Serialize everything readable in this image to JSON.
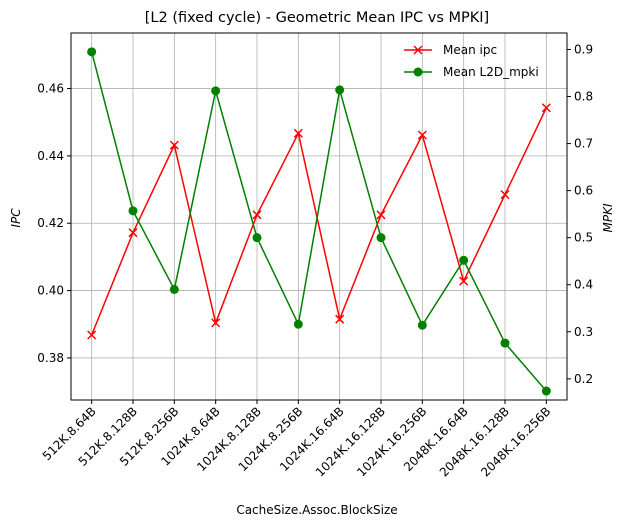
{
  "chart_data": {
    "type": "line",
    "title": "[L2 (fixed cycle) - Geometric Mean IPC vs MPKI]",
    "xlabel": "CacheSize.Assoc.BlockSize",
    "ylabel": "IPC",
    "y2label": "MPKI",
    "categories": [
      "512K.8.64B",
      "512K.8.128B",
      "512K.8.256B",
      "1024K.8.64B",
      "1024K.8.128B",
      "1024K.8.256B",
      "1024K.16.64B",
      "1024K.16.128B",
      "1024K.16.256B",
      "2048K.16.64B",
      "2048K.16.128B",
      "2048K.16.256B"
    ],
    "series": [
      {
        "name": "Mean ipc",
        "axis": "left",
        "color": "#ff0000",
        "marker": "x",
        "values": [
          0.3868,
          0.4172,
          0.4432,
          0.3904,
          0.4225,
          0.4467,
          0.3915,
          0.4225,
          0.4462,
          0.4028,
          0.4285,
          0.4543
        ]
      },
      {
        "name": "Mean L2D_mpki",
        "axis": "right",
        "color": "#008000",
        "marker": "circle",
        "values": [
          0.895,
          0.557,
          0.39,
          0.812,
          0.5,
          0.316,
          0.814,
          0.5,
          0.314,
          0.452,
          0.276,
          0.174
        ]
      }
    ],
    "ylim": [
      0.3675,
      0.4765
    ],
    "y2lim": [
      0.155,
      0.935
    ],
    "yticks": [
      0.38,
      0.4,
      0.42,
      0.44,
      0.46
    ],
    "y2ticks": [
      0.2,
      0.3,
      0.4,
      0.5,
      0.6,
      0.7,
      0.8,
      0.9
    ],
    "grid": true,
    "legend": "top-right"
  }
}
